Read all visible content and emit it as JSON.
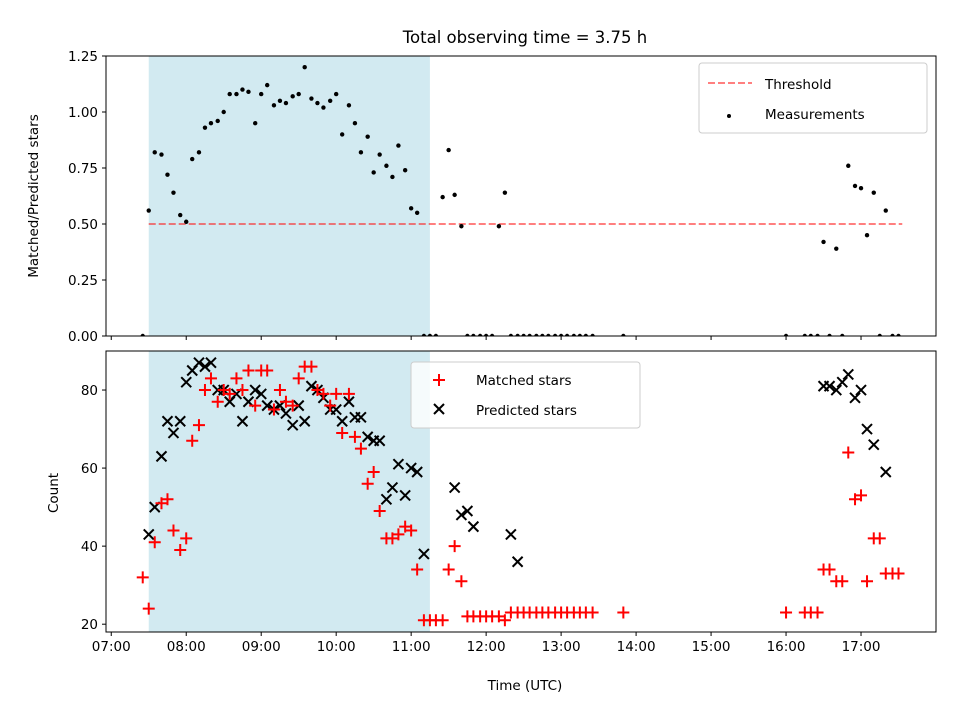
{
  "figure": {
    "title": "Total observing time = 3.75 h",
    "xlabel": "Time (UTC)"
  },
  "colors": {
    "shade": "#add8e6",
    "threshold": "#ff0000",
    "measurements": "#000000",
    "matched": "#ff0000",
    "predicted": "#000000"
  },
  "chart_data": [
    {
      "type": "scatter",
      "panel": "top",
      "ylabel": "Matched/Predicted stars",
      "xlim": [
        6.93,
        18.0
      ],
      "ylim": [
        0.0,
        1.25
      ],
      "x_ticks": [
        "07:00",
        "08:00",
        "09:00",
        "10:00",
        "11:00",
        "12:00",
        "13:00",
        "14:00",
        "15:00",
        "16:00",
        "17:00"
      ],
      "y_ticks": [
        "0.00",
        "0.25",
        "0.50",
        "0.75",
        "1.00",
        "1.25"
      ],
      "legend": {
        "position": "top-right",
        "entries": [
          "Threshold",
          "Measurements"
        ]
      },
      "shaded_interval": [
        7.5,
        11.25
      ],
      "threshold": {
        "name": "Threshold",
        "y": 0.5,
        "x_range": [
          7.5,
          17.55
        ]
      },
      "series": [
        {
          "name": "Measurements",
          "x": [
            7.42,
            7.5,
            7.58,
            7.67,
            7.75,
            7.83,
            7.92,
            8.0,
            8.08,
            8.17,
            8.25,
            8.33,
            8.42,
            8.5,
            8.58,
            8.67,
            8.75,
            8.83,
            8.92,
            9.0,
            9.08,
            9.17,
            9.25,
            9.33,
            9.42,
            9.5,
            9.58,
            9.67,
            9.75,
            9.83,
            9.92,
            10.0,
            10.08,
            10.17,
            10.25,
            10.33,
            10.42,
            10.5,
            10.58,
            10.67,
            10.75,
            10.83,
            10.92,
            11.0,
            11.08,
            11.17,
            11.25,
            11.33,
            11.42,
            11.5,
            11.58,
            11.67,
            11.75,
            11.83,
            11.92,
            12.0,
            12.08,
            12.17,
            12.25,
            12.33,
            12.42,
            12.5,
            12.58,
            12.67,
            12.75,
            12.83,
            12.92,
            13.0,
            13.08,
            13.17,
            13.25,
            13.33,
            13.42,
            13.83,
            16.0,
            16.25,
            16.33,
            16.42,
            16.5,
            16.58,
            16.67,
            16.75,
            16.83,
            16.92,
            17.0,
            17.08,
            17.17,
            17.25,
            17.33,
            17.42,
            17.5
          ],
          "y": [
            0.0,
            0.56,
            0.82,
            0.81,
            0.72,
            0.64,
            0.54,
            0.51,
            0.79,
            0.82,
            0.93,
            0.95,
            0.96,
            1.0,
            1.08,
            1.08,
            1.1,
            1.09,
            0.95,
            1.08,
            1.12,
            1.03,
            1.05,
            1.04,
            1.07,
            1.08,
            1.2,
            1.06,
            1.04,
            1.02,
            1.05,
            1.08,
            0.9,
            1.03,
            0.95,
            0.82,
            0.89,
            0.73,
            0.81,
            0.76,
            0.71,
            0.85,
            0.74,
            0.57,
            0.55,
            0.0,
            0.0,
            0.0,
            0.62,
            0.83,
            0.63,
            0.49,
            0.0,
            0.0,
            0.0,
            0.0,
            0.0,
            0.49,
            0.64,
            0.0,
            0.0,
            0.0,
            0.0,
            0.0,
            0.0,
            0.0,
            0.0,
            0.0,
            0.0,
            0.0,
            0.0,
            0.0,
            0.0,
            0.0,
            0.0,
            0.0,
            0.0,
            0.0,
            0.42,
            0.0,
            0.39,
            0.0,
            0.76,
            0.67,
            0.66,
            0.45,
            0.64,
            0.0,
            0.56,
            0.0,
            0.0
          ]
        }
      ]
    },
    {
      "type": "scatter",
      "panel": "bottom",
      "ylabel": "Count",
      "xlim": [
        6.93,
        18.0
      ],
      "ylim": [
        18.0,
        90.0
      ],
      "x_ticks": [
        "07:00",
        "08:00",
        "09:00",
        "10:00",
        "11:00",
        "12:00",
        "13:00",
        "14:00",
        "15:00",
        "16:00",
        "17:00"
      ],
      "y_ticks": [
        "20",
        "40",
        "60",
        "80"
      ],
      "legend": {
        "position": "top-center",
        "entries": [
          "Matched stars",
          "Predicted stars"
        ]
      },
      "shaded_interval": [
        7.5,
        11.25
      ],
      "series": [
        {
          "name": "Matched stars",
          "marker": "+",
          "x": [
            7.42,
            7.5,
            7.58,
            7.67,
            7.75,
            7.83,
            7.92,
            8.0,
            8.08,
            8.17,
            8.25,
            8.33,
            8.42,
            8.5,
            8.58,
            8.67,
            8.75,
            8.83,
            8.92,
            9.0,
            9.08,
            9.17,
            9.25,
            9.33,
            9.42,
            9.5,
            9.58,
            9.67,
            9.75,
            9.83,
            9.92,
            10.0,
            10.08,
            10.17,
            10.25,
            10.33,
            10.42,
            10.5,
            10.58,
            10.67,
            10.75,
            10.83,
            10.92,
            11.0,
            11.08,
            11.17,
            11.25,
            11.33,
            11.42,
            11.5,
            11.58,
            11.67,
            11.75,
            11.83,
            11.92,
            12.0,
            12.08,
            12.17,
            12.25,
            12.33,
            12.42,
            12.5,
            12.58,
            12.67,
            12.75,
            12.83,
            12.92,
            13.0,
            13.08,
            13.17,
            13.25,
            13.33,
            13.42,
            13.83,
            16.0,
            16.25,
            16.33,
            16.42,
            16.5,
            16.58,
            16.67,
            16.75,
            16.83,
            16.92,
            17.0,
            17.08,
            17.17,
            17.25,
            17.33,
            17.42,
            17.5
          ],
          "y": [
            32,
            24,
            41,
            51,
            52,
            44,
            39,
            42,
            67,
            71,
            80,
            83,
            77,
            80,
            79,
            83,
            80,
            85,
            76,
            85,
            85,
            75,
            80,
            77,
            76,
            83,
            86,
            86,
            80,
            79,
            76,
            79,
            69,
            79,
            68,
            65,
            56,
            59,
            49,
            42,
            42,
            43,
            45,
            44,
            34,
            21,
            21,
            21,
            21,
            34,
            40,
            31,
            22,
            22,
            22,
            22,
            22,
            22,
            21,
            23,
            23,
            23,
            23,
            23,
            23,
            23,
            23,
            23,
            23,
            23,
            23,
            23,
            23,
            23,
            23,
            23,
            23,
            23,
            34,
            34,
            31,
            31,
            64,
            52,
            53,
            31,
            42,
            42,
            33,
            33,
            33
          ]
        },
        {
          "name": "Predicted stars",
          "marker": "x",
          "x": [
            7.5,
            7.58,
            7.67,
            7.75,
            7.83,
            7.92,
            8.0,
            8.08,
            8.17,
            8.25,
            8.33,
            8.42,
            8.5,
            8.58,
            8.67,
            8.75,
            8.83,
            8.92,
            9.0,
            9.08,
            9.17,
            9.25,
            9.33,
            9.42,
            9.5,
            9.58,
            9.67,
            9.75,
            9.83,
            9.92,
            10.0,
            10.08,
            10.17,
            10.25,
            10.33,
            10.42,
            10.5,
            10.58,
            10.67,
            10.75,
            10.83,
            10.92,
            11.0,
            11.08,
            11.17,
            11.58,
            11.67,
            11.75,
            11.83,
            12.33,
            12.42,
            16.5,
            16.58,
            16.67,
            16.75,
            16.83,
            16.92,
            17.0,
            17.08,
            17.17,
            17.33
          ],
          "y": [
            43,
            50,
            63,
            72,
            69,
            72,
            82,
            85,
            87,
            86,
            87,
            80,
            80,
            77,
            79,
            72,
            77,
            80,
            79,
            76,
            75,
            76,
            74,
            71,
            76,
            72,
            81,
            80,
            78,
            75,
            75,
            72,
            77,
            73,
            73,
            68,
            67,
            67,
            52,
            55,
            61,
            53,
            60,
            59,
            38,
            55,
            48,
            49,
            45,
            43,
            36,
            81,
            81,
            80,
            82,
            84,
            78,
            80,
            70,
            66,
            59
          ]
        }
      ]
    }
  ]
}
